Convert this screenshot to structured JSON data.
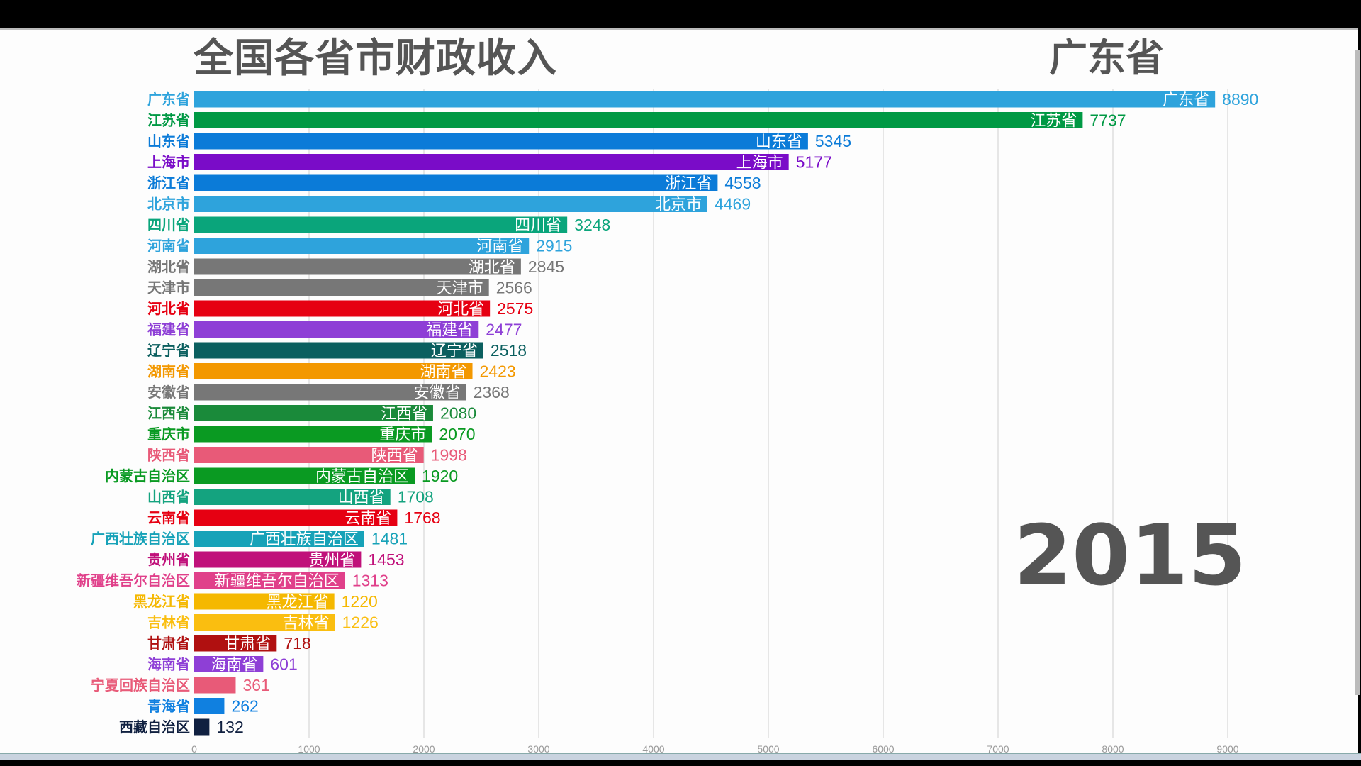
{
  "chart_data": {
    "type": "bar",
    "orientation": "horizontal",
    "title": "全国各省市财政收入",
    "leader": "广东省",
    "year": "2015",
    "xlim": [
      0,
      9000
    ],
    "xticks": [
      0,
      1000,
      2000,
      3000,
      4000,
      5000,
      6000,
      7000,
      8000,
      9000
    ],
    "grid": true,
    "bars": [
      {
        "name": "广东省",
        "value": 8890,
        "color": "#2ea3dc"
      },
      {
        "name": "江苏省",
        "value": 7737,
        "color": "#009944"
      },
      {
        "name": "山东省",
        "value": 5345,
        "color": "#0b7bd8"
      },
      {
        "name": "上海市",
        "value": 5177,
        "color": "#7a0cc8"
      },
      {
        "name": "浙江省",
        "value": 4558,
        "color": "#0b7bd8"
      },
      {
        "name": "北京市",
        "value": 4469,
        "color": "#2ea3dc"
      },
      {
        "name": "四川省",
        "value": 3248,
        "color": "#0aa57b"
      },
      {
        "name": "河南省",
        "value": 2915,
        "color": "#2ea3dc"
      },
      {
        "name": "湖北省",
        "value": 2845,
        "color": "#777777"
      },
      {
        "name": "天津市",
        "value": 2566,
        "color": "#777777"
      },
      {
        "name": "河北省",
        "value": 2575,
        "color": "#e60012"
      },
      {
        "name": "福建省",
        "value": 2477,
        "color": "#8e3fd6"
      },
      {
        "name": "辽宁省",
        "value": 2518,
        "color": "#0b5f5f"
      },
      {
        "name": "湖南省",
        "value": 2423,
        "color": "#f39800"
      },
      {
        "name": "安徽省",
        "value": 2368,
        "color": "#777777"
      },
      {
        "name": "江西省",
        "value": 2080,
        "color": "#1a8a3a"
      },
      {
        "name": "重庆市",
        "value": 2070,
        "color": "#0a9a22"
      },
      {
        "name": "陕西省",
        "value": 1998,
        "color": "#e85a78"
      },
      {
        "name": "内蒙古自治区",
        "value": 1920,
        "color": "#0a9a22"
      },
      {
        "name": "山西省",
        "value": 1708,
        "color": "#14a37f"
      },
      {
        "name": "云南省",
        "value": 1768,
        "color": "#e60012"
      },
      {
        "name": "广西壮族自治区",
        "value": 1481,
        "color": "#17a2b8"
      },
      {
        "name": "贵州省",
        "value": 1453,
        "color": "#c0107a"
      },
      {
        "name": "新疆维吾尔自治区",
        "value": 1313,
        "color": "#e0408a"
      },
      {
        "name": "黑龙江省",
        "value": 1220,
        "color": "#f5b800"
      },
      {
        "name": "吉林省",
        "value": 1226,
        "color": "#fabe10"
      },
      {
        "name": "甘肃省",
        "value": 718,
        "color": "#b01010"
      },
      {
        "name": "海南省",
        "value": 601,
        "color": "#8e3fd6"
      },
      {
        "name": "宁夏回族自治区",
        "value": 361,
        "color": "#e85a78"
      },
      {
        "name": "青海省",
        "value": 262,
        "color": "#1080e0"
      },
      {
        "name": "西藏自治区",
        "value": 132,
        "color": "#102040"
      }
    ]
  }
}
